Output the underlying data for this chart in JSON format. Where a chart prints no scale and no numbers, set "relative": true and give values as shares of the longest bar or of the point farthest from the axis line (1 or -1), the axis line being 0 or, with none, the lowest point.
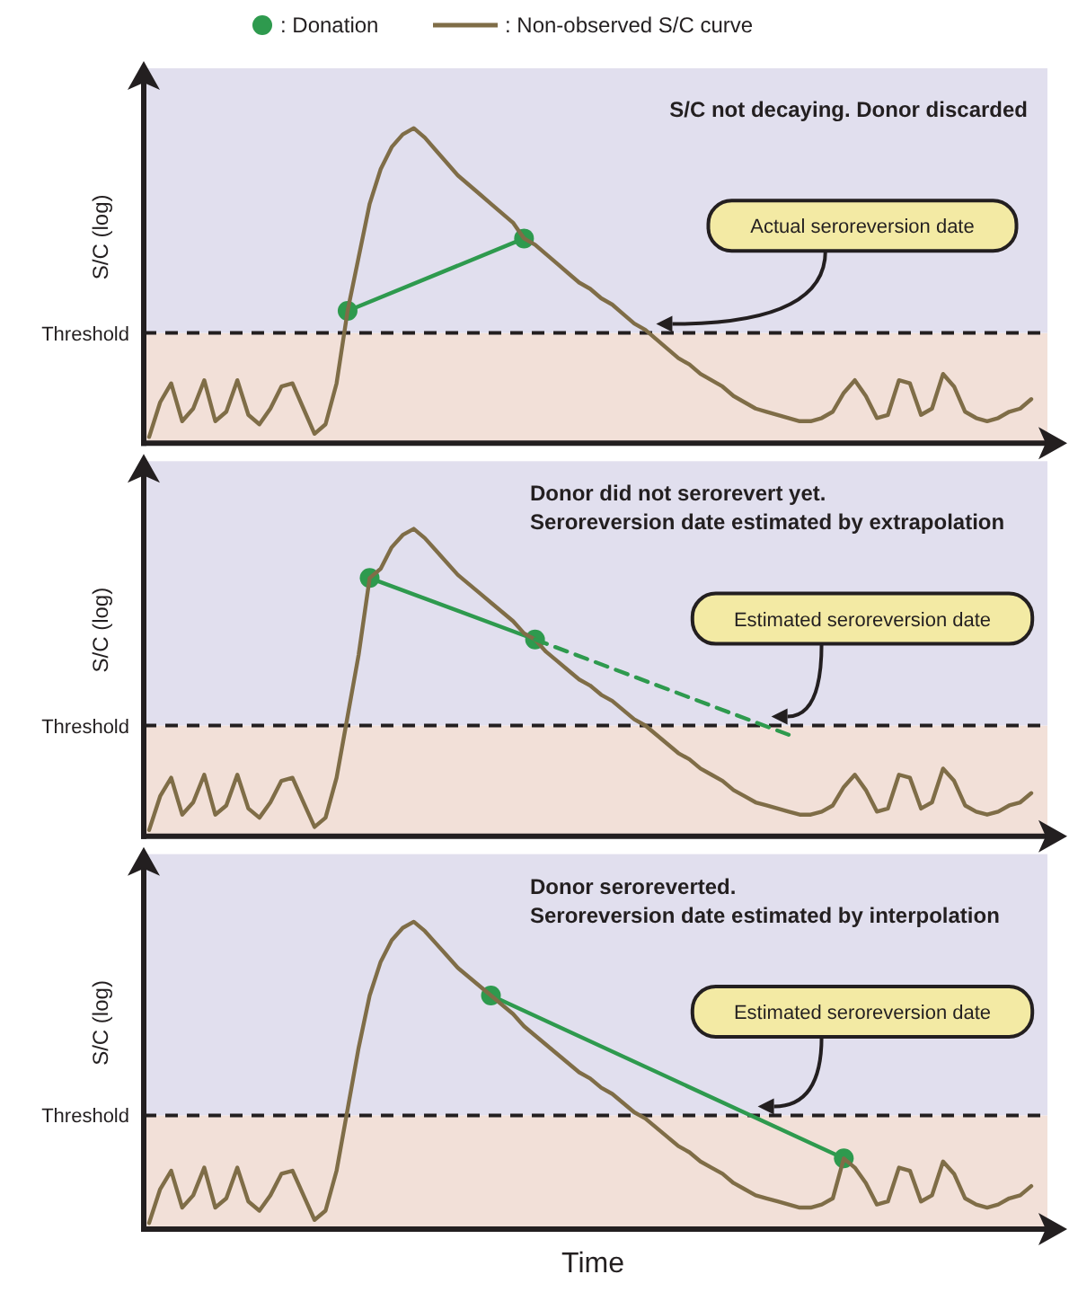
{
  "chart_data": [
    {
      "type": "line",
      "relative": true,
      "tick_labels": false,
      "legend": "top",
      "title": "S/C not decaying. Donor discarded",
      "ylabel": "S/C (log)",
      "categories": [
        null,
        null,
        null,
        null,
        null,
        null,
        null,
        null,
        null,
        null,
        null,
        null,
        null,
        null,
        null,
        null,
        null,
        null,
        null,
        null,
        null,
        null,
        null,
        null,
        null,
        null,
        null,
        null,
        null,
        null,
        null,
        null,
        null,
        null,
        null,
        null,
        null,
        null,
        null,
        null,
        null,
        null,
        null,
        null,
        null,
        null,
        null,
        null,
        null,
        null,
        null,
        null,
        null,
        null,
        null,
        null,
        null,
        null,
        null,
        null,
        null,
        null,
        null,
        null,
        null,
        null,
        null,
        null,
        null,
        null,
        null,
        null,
        null,
        null,
        null,
        null,
        null,
        null,
        null,
        null,
        null
      ],
      "series": [
        {
          "name": ": Donation",
          "type": "line",
          "marker": "circle",
          "line_style": "solid",
          "color": "#2e9a4e",
          "values": [
            null,
            null,
            null,
            null,
            null,
            null,
            null,
            null,
            null,
            null,
            null,
            null,
            null,
            null,
            null,
            null,
            null,
            null,
            0.42,
            null,
            null,
            null,
            null,
            null,
            null,
            null,
            null,
            null,
            null,
            null,
            null,
            null,
            null,
            null,
            0.65,
            null,
            null,
            null,
            null,
            null,
            null,
            null,
            null,
            null,
            null,
            null,
            null,
            null,
            null,
            null,
            null,
            null,
            null,
            null,
            null,
            null,
            null,
            null,
            null,
            null,
            null,
            null,
            null,
            null,
            null,
            null,
            null,
            null,
            null,
            null,
            null,
            null,
            null,
            null,
            null,
            null,
            null,
            null,
            null,
            null,
            null
          ]
        },
        {
          "name": ": Non-observed S/C curve",
          "type": "line",
          "marker": "none",
          "line_style": "solid",
          "color": "#7f6d47",
          "values": [
            0.02,
            0.13,
            0.19,
            0.07,
            0.11,
            0.2,
            0.07,
            0.1,
            0.2,
            0.09,
            0.06,
            0.11,
            0.18,
            0.19,
            0.11,
            0.03,
            0.06,
            0.19,
            0.42,
            0.59,
            0.76,
            0.87,
            0.94,
            0.98,
            1,
            0.97,
            0.93,
            0.89,
            0.85,
            0.82,
            0.79,
            0.76,
            0.73,
            0.7,
            0.65,
            0.63,
            0.6,
            0.57,
            0.54,
            0.51,
            0.49,
            0.46,
            0.44,
            0.41,
            0.38,
            0.36,
            0.33,
            0.3,
            0.27,
            0.25,
            0.22,
            0.2,
            0.18,
            0.15,
            0.13,
            0.11,
            0.1,
            0.09,
            0.08,
            0.07,
            0.07,
            0.08,
            0.1,
            0.16,
            0.2,
            0.15,
            0.08,
            0.09,
            0.2,
            0.19,
            0.09,
            0.11,
            0.22,
            0.18,
            0.1,
            0.08,
            0.07,
            0.08,
            0.1,
            0.11,
            0.14
          ]
        }
      ],
      "bands": [
        {
          "axis": "y",
          "from": 0,
          "to": 0.35,
          "color": "#f2e0d8"
        },
        {
          "axis": "y",
          "from": 0.35,
          "to": 1.19,
          "color": "#e1dfee"
        }
      ],
      "ref_lines": [
        {
          "axis": "y",
          "value": 0.35,
          "label": "Threshold",
          "color": "#231f20",
          "line_style": "dashed"
        }
      ],
      "annotations": [
        "Actual seroreversion date"
      ]
    },
    {
      "type": "line",
      "relative": true,
      "tick_labels": false,
      "title": "Donor did not serorevert yet.",
      "subtitle": "Seroreversion date estimated by extrapolation",
      "ylabel": "S/C (log)",
      "categories": [
        null,
        null,
        null,
        null,
        null,
        null,
        null,
        null,
        null,
        null,
        null,
        null,
        null,
        null,
        null,
        null,
        null,
        null,
        null,
        null,
        null,
        null,
        null,
        null,
        null,
        null,
        null,
        null,
        null,
        null,
        null,
        null,
        null,
        null,
        null,
        null,
        null,
        null,
        null,
        null,
        null,
        null,
        null,
        null,
        null,
        null,
        null,
        null,
        null,
        null,
        null,
        null,
        null,
        null,
        null,
        null,
        null,
        null,
        null,
        null,
        null,
        null,
        null,
        null,
        null,
        null,
        null,
        null,
        null,
        null,
        null,
        null,
        null,
        null,
        null,
        null,
        null,
        null,
        null,
        null,
        null
      ],
      "series": [
        {
          "type": "line",
          "marker": "circle",
          "line_style": "solid",
          "color": "#2e9a4e",
          "values": [
            null,
            null,
            null,
            null,
            null,
            null,
            null,
            null,
            null,
            null,
            null,
            null,
            null,
            null,
            null,
            null,
            null,
            null,
            null,
            null,
            0.84,
            null,
            null,
            null,
            null,
            null,
            null,
            null,
            null,
            null,
            null,
            null,
            null,
            null,
            null,
            0.64,
            null,
            null,
            null,
            null,
            null,
            null,
            null,
            null,
            null,
            null,
            null,
            null,
            null,
            null,
            null,
            null,
            null,
            null,
            null,
            null,
            null,
            null,
            null,
            null,
            null,
            null,
            null,
            null,
            null,
            null,
            null,
            null,
            null,
            null,
            null,
            null,
            null,
            null,
            null,
            null,
            null,
            null,
            null,
            null,
            null
          ]
        },
        {
          "type": "line",
          "marker": "none",
          "line_style": "solid",
          "color": "#7f6d47",
          "values": [
            0.02,
            0.13,
            0.19,
            0.07,
            0.11,
            0.2,
            0.07,
            0.1,
            0.2,
            0.09,
            0.06,
            0.11,
            0.18,
            0.19,
            0.11,
            0.03,
            0.06,
            0.19,
            0.39,
            0.59,
            0.84,
            0.87,
            0.94,
            0.98,
            1,
            0.97,
            0.93,
            0.89,
            0.85,
            0.82,
            0.79,
            0.76,
            0.73,
            0.7,
            0.66,
            0.64,
            0.6,
            0.57,
            0.54,
            0.51,
            0.49,
            0.46,
            0.44,
            0.41,
            0.38,
            0.36,
            0.33,
            0.3,
            0.27,
            0.25,
            0.22,
            0.2,
            0.18,
            0.15,
            0.13,
            0.11,
            0.1,
            0.09,
            0.08,
            0.07,
            0.07,
            0.08,
            0.1,
            0.16,
            0.2,
            0.15,
            0.08,
            0.09,
            0.2,
            0.19,
            0.09,
            0.11,
            0.22,
            0.18,
            0.1,
            0.08,
            0.07,
            0.08,
            0.1,
            0.11,
            0.14
          ]
        },
        {
          "type": "line",
          "line_style": "dashed",
          "color": "#2e9a4e",
          "values": [
            null,
            null,
            null,
            null,
            null,
            null,
            null,
            null,
            null,
            null,
            null,
            null,
            null,
            null,
            null,
            null,
            null,
            null,
            null,
            null,
            null,
            null,
            null,
            null,
            null,
            null,
            null,
            null,
            null,
            null,
            null,
            null,
            null,
            null,
            null,
            0.64,
            null,
            null,
            null,
            null,
            null,
            null,
            null,
            null,
            null,
            null,
            null,
            null,
            null,
            null,
            null,
            null,
            null,
            null,
            null,
            null,
            null,
            null,
            0.33,
            null,
            null,
            null,
            null,
            null,
            null,
            null,
            null,
            null,
            null,
            null,
            null,
            null,
            null,
            null,
            null,
            null,
            null,
            null,
            null,
            null,
            null
          ]
        }
      ],
      "bands": [
        {
          "axis": "y",
          "from": 0,
          "to": 0.36,
          "color": "#f2e0d8"
        },
        {
          "axis": "y",
          "from": 0.36,
          "to": 1.22,
          "color": "#e1dfee"
        }
      ],
      "ref_lines": [
        {
          "axis": "y",
          "value": 0.36,
          "label": "Threshold",
          "color": "#231f20",
          "line_style": "dashed"
        }
      ],
      "annotations": [
        "Estimated seroreversion date"
      ]
    },
    {
      "type": "line",
      "relative": true,
      "tick_labels": false,
      "title": "Donor seroreverted.",
      "subtitle": "Seroreversion date estimated by interpolation",
      "ylabel": "S/C (log)",
      "xlabel": "Time",
      "categories": [
        null,
        null,
        null,
        null,
        null,
        null,
        null,
        null,
        null,
        null,
        null,
        null,
        null,
        null,
        null,
        null,
        null,
        null,
        null,
        null,
        null,
        null,
        null,
        null,
        null,
        null,
        null,
        null,
        null,
        null,
        null,
        null,
        null,
        null,
        null,
        null,
        null,
        null,
        null,
        null,
        null,
        null,
        null,
        null,
        null,
        null,
        null,
        null,
        null,
        null,
        null,
        null,
        null,
        null,
        null,
        null,
        null,
        null,
        null,
        null,
        null,
        null,
        null,
        null,
        null,
        null,
        null,
        null,
        null,
        null,
        null,
        null,
        null,
        null,
        null,
        null,
        null,
        null,
        null,
        null,
        null
      ],
      "series": [
        {
          "type": "line",
          "marker": "circle",
          "line_style": "solid",
          "color": "#2e9a4e",
          "values": [
            null,
            null,
            null,
            null,
            null,
            null,
            null,
            null,
            null,
            null,
            null,
            null,
            null,
            null,
            null,
            null,
            null,
            null,
            null,
            null,
            null,
            null,
            null,
            null,
            null,
            null,
            null,
            null,
            null,
            null,
            null,
            0.76,
            null,
            null,
            null,
            null,
            null,
            null,
            null,
            null,
            null,
            null,
            null,
            null,
            null,
            null,
            null,
            null,
            null,
            null,
            null,
            null,
            null,
            null,
            null,
            null,
            null,
            null,
            null,
            null,
            null,
            null,
            null,
            0.23,
            null,
            null,
            null,
            null,
            null,
            null,
            null,
            null,
            null,
            null,
            null,
            null,
            null,
            null,
            null,
            null,
            null
          ]
        },
        {
          "type": "line",
          "marker": "none",
          "line_style": "solid",
          "color": "#7f6d47",
          "values": [
            0.02,
            0.13,
            0.19,
            0.07,
            0.11,
            0.2,
            0.07,
            0.1,
            0.2,
            0.09,
            0.06,
            0.11,
            0.18,
            0.19,
            0.11,
            0.03,
            0.06,
            0.19,
            0.39,
            0.59,
            0.76,
            0.87,
            0.94,
            0.98,
            1,
            0.97,
            0.93,
            0.89,
            0.85,
            0.82,
            0.79,
            0.76,
            0.73,
            0.7,
            0.66,
            0.63,
            0.6,
            0.57,
            0.54,
            0.51,
            0.49,
            0.46,
            0.44,
            0.41,
            0.38,
            0.36,
            0.33,
            0.3,
            0.27,
            0.25,
            0.22,
            0.2,
            0.18,
            0.15,
            0.13,
            0.11,
            0.1,
            0.09,
            0.08,
            0.07,
            0.07,
            0.08,
            0.1,
            0.23,
            0.2,
            0.15,
            0.08,
            0.09,
            0.2,
            0.19,
            0.09,
            0.11,
            0.22,
            0.18,
            0.1,
            0.08,
            0.07,
            0.08,
            0.1,
            0.11,
            0.14
          ]
        }
      ],
      "bands": [
        {
          "axis": "y",
          "from": 0,
          "to": 0.37,
          "color": "#f2e0d8"
        },
        {
          "axis": "y",
          "from": 0.37,
          "to": 1.22,
          "color": "#e1dfee"
        }
      ],
      "ref_lines": [
        {
          "axis": "y",
          "value": 0.37,
          "label": "Threshold",
          "color": "#231f20",
          "line_style": "dashed"
        }
      ],
      "annotations": [
        "Estimated seroreversion date"
      ]
    }
  ]
}
